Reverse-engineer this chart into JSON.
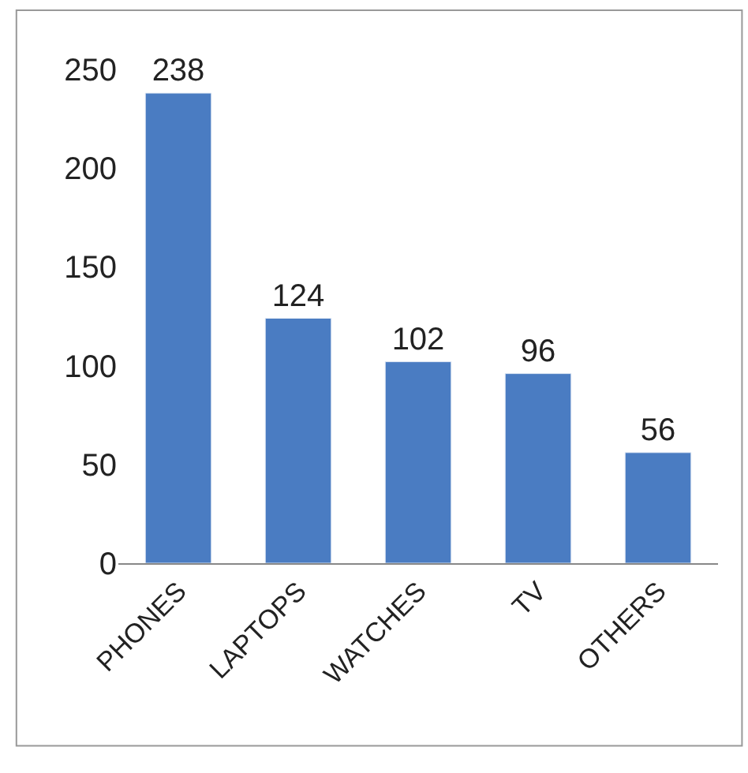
{
  "chart_data": {
    "type": "bar",
    "categories": [
      "PHONES",
      "LAPTOPS",
      "WATCHES",
      "TV",
      "OTHERS"
    ],
    "values": [
      238,
      124,
      102,
      96,
      56
    ],
    "color": "#4a7cc2",
    "ylim": [
      0,
      250
    ],
    "yticks": [
      0,
      50,
      100,
      150,
      200,
      250
    ],
    "data_labels": true
  }
}
